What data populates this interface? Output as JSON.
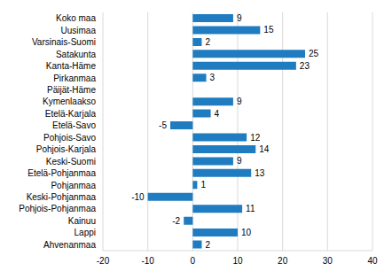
{
  "chart_data": {
    "type": "bar",
    "orientation": "horizontal",
    "categories": [
      "Koko maa",
      "Uusimaa",
      "Varsinais-Suomi",
      "Satakunta",
      "Kanta-Häme",
      "Pirkanmaa",
      "Päijät-Häme",
      "Kymenlaakso",
      "Etelä-Karjala",
      "Etelä-Savo",
      "Pohjois-Savo",
      "Pohjois-Karjala",
      "Keski-Suomi",
      "Etelä-Pohjanmaa",
      "Pohjanmaa",
      "Keski-Pohjanmaa",
      "Pohjois-Pohjanmaa",
      "Kainuu",
      "Lappi",
      "Ahvenanmaa"
    ],
    "values": [
      9,
      15,
      2,
      25,
      23,
      3,
      0,
      9,
      4,
      -5,
      12,
      14,
      9,
      13,
      1,
      -10,
      11,
      -2,
      10,
      2
    ],
    "color": "#1f7cc1",
    "xlim": [
      -20,
      40
    ],
    "xticks": [
      -20,
      -10,
      0,
      10,
      20,
      30,
      40
    ],
    "grid": true,
    "data_labels": true
  }
}
